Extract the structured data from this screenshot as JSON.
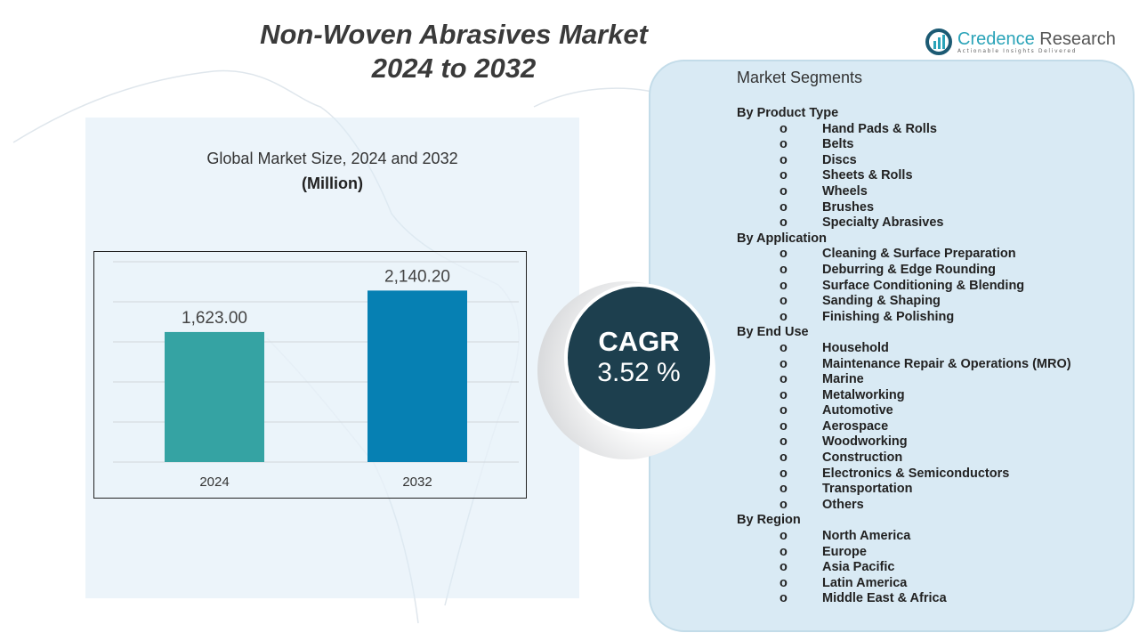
{
  "title_line1": "Non-Woven Abrasives Market",
  "title_line2": "2024 to 2032",
  "logo": {
    "name_part1": "Credence",
    "name_part2": " Research",
    "tagline": "Actionable Insights Delivered"
  },
  "chart_subtitle": "Global Market Size, 2024 and 2032",
  "chart_unit": "(Million)",
  "chart_data": {
    "type": "bar",
    "categories": [
      "2024",
      "2032"
    ],
    "values": [
      1623.0,
      2140.2
    ],
    "data_labels": [
      "1,623.00",
      "2,140.20"
    ],
    "colors": [
      "#35a3a3",
      "#0680b3"
    ],
    "ylim": [
      0,
      2500
    ],
    "grid": true,
    "xlabel": "",
    "ylabel": ""
  },
  "cagr": {
    "label": "CAGR",
    "value": "3.52 %"
  },
  "segments": {
    "title": "Market Segments",
    "bullet": "o",
    "groups": [
      {
        "name": "By Product Type",
        "items": [
          "Hand Pads &  Rolls",
          "Belts",
          "Discs",
          "Sheets & Rolls",
          "Wheels",
          "Brushes",
          "Specialty Abrasives"
        ]
      },
      {
        "name": "By Application",
        "items": [
          "Cleaning & Surface Preparation",
          "Deburring & Edge Rounding",
          "Surface Conditioning & Blending",
          "Sanding & Shaping",
          "Finishing & Polishing"
        ]
      },
      {
        "name": "By End Use",
        "items": [
          "Household",
          "Maintenance Repair & Operations (MRO)",
          "Marine",
          "Metalworking",
          "Automotive",
          "Aerospace",
          "Woodworking",
          "Construction",
          "Electronics & Semiconductors",
          "Transportation",
          "Others"
        ]
      },
      {
        "name": "By Region",
        "items": [
          "North America",
          "Europe",
          "Asia Pacific",
          "Latin America",
          "Middle East & Africa"
        ]
      }
    ]
  }
}
